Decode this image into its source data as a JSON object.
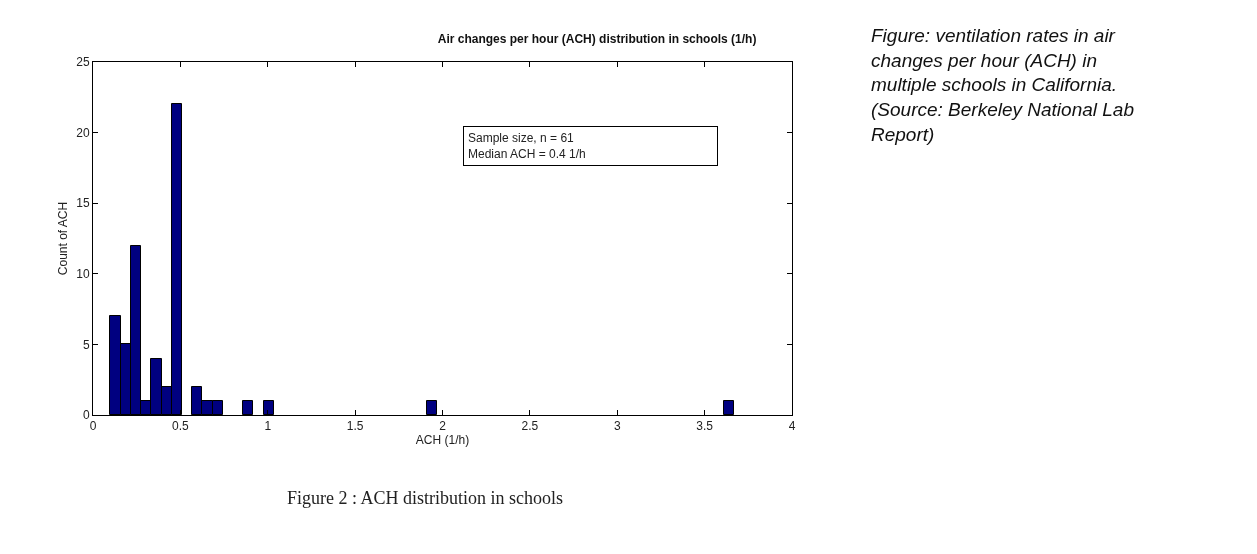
{
  "chart_data": {
    "type": "histogram",
    "title": "Air changes per hour (ACH) distribution in schools (1/h)",
    "xlabel": "ACH (1/h)",
    "ylabel": "Count of ACH",
    "bins": [
      0.1,
      0.158,
      0.217,
      0.275,
      0.334,
      0.392,
      0.451,
      0.509,
      0.568,
      0.626,
      0.685,
      0.743,
      0.802,
      0.86,
      0.918,
      0.977,
      1.035,
      1.094,
      1.152,
      1.211,
      1.269,
      1.328,
      1.386,
      1.445,
      1.503,
      1.562,
      1.62,
      1.678,
      1.737,
      1.795,
      1.854,
      1.912,
      1.971,
      2.029,
      2.088,
      2.146,
      2.205,
      2.263,
      2.322,
      2.38,
      2.438,
      2.497,
      2.555,
      2.614,
      2.672,
      2.731,
      2.789,
      2.848,
      2.906,
      2.965,
      3.023,
      3.082,
      3.14,
      3.198,
      3.257,
      3.315,
      3.374,
      3.432,
      3.491,
      3.549,
      3.608,
      3.666
    ],
    "values": [
      7,
      5,
      12,
      1,
      4,
      2,
      22,
      0,
      2,
      1,
      1,
      0,
      0,
      1,
      0,
      1,
      0,
      0,
      0,
      0,
      0,
      0,
      0,
      0,
      0,
      0,
      0,
      0,
      0,
      0,
      0,
      1,
      0,
      0,
      0,
      0,
      0,
      0,
      0,
      0,
      0,
      0,
      0,
      0,
      0,
      0,
      0,
      0,
      0,
      0,
      0,
      0,
      0,
      0,
      0,
      0,
      0,
      0,
      0,
      0,
      1
    ],
    "color": "#000080",
    "xlim": [
      0,
      4
    ],
    "xticks": [
      0,
      0.5,
      1,
      1.5,
      2,
      2.5,
      3,
      3.5,
      4
    ],
    "ylim": [
      0,
      25
    ],
    "yticks": [
      0,
      5,
      10,
      15,
      20,
      25
    ],
    "annotations": [
      "Sample size, n = 61\nMedian ACH = 0.4 1/h",
      "Figure 2 : ACH distribution in schools",
      "Figure: ventilation rates in air\nchanges per hour (ACH) in\nmultiple schools in California.\n(Source: Berkeley National Lab\nReport)"
    ]
  }
}
